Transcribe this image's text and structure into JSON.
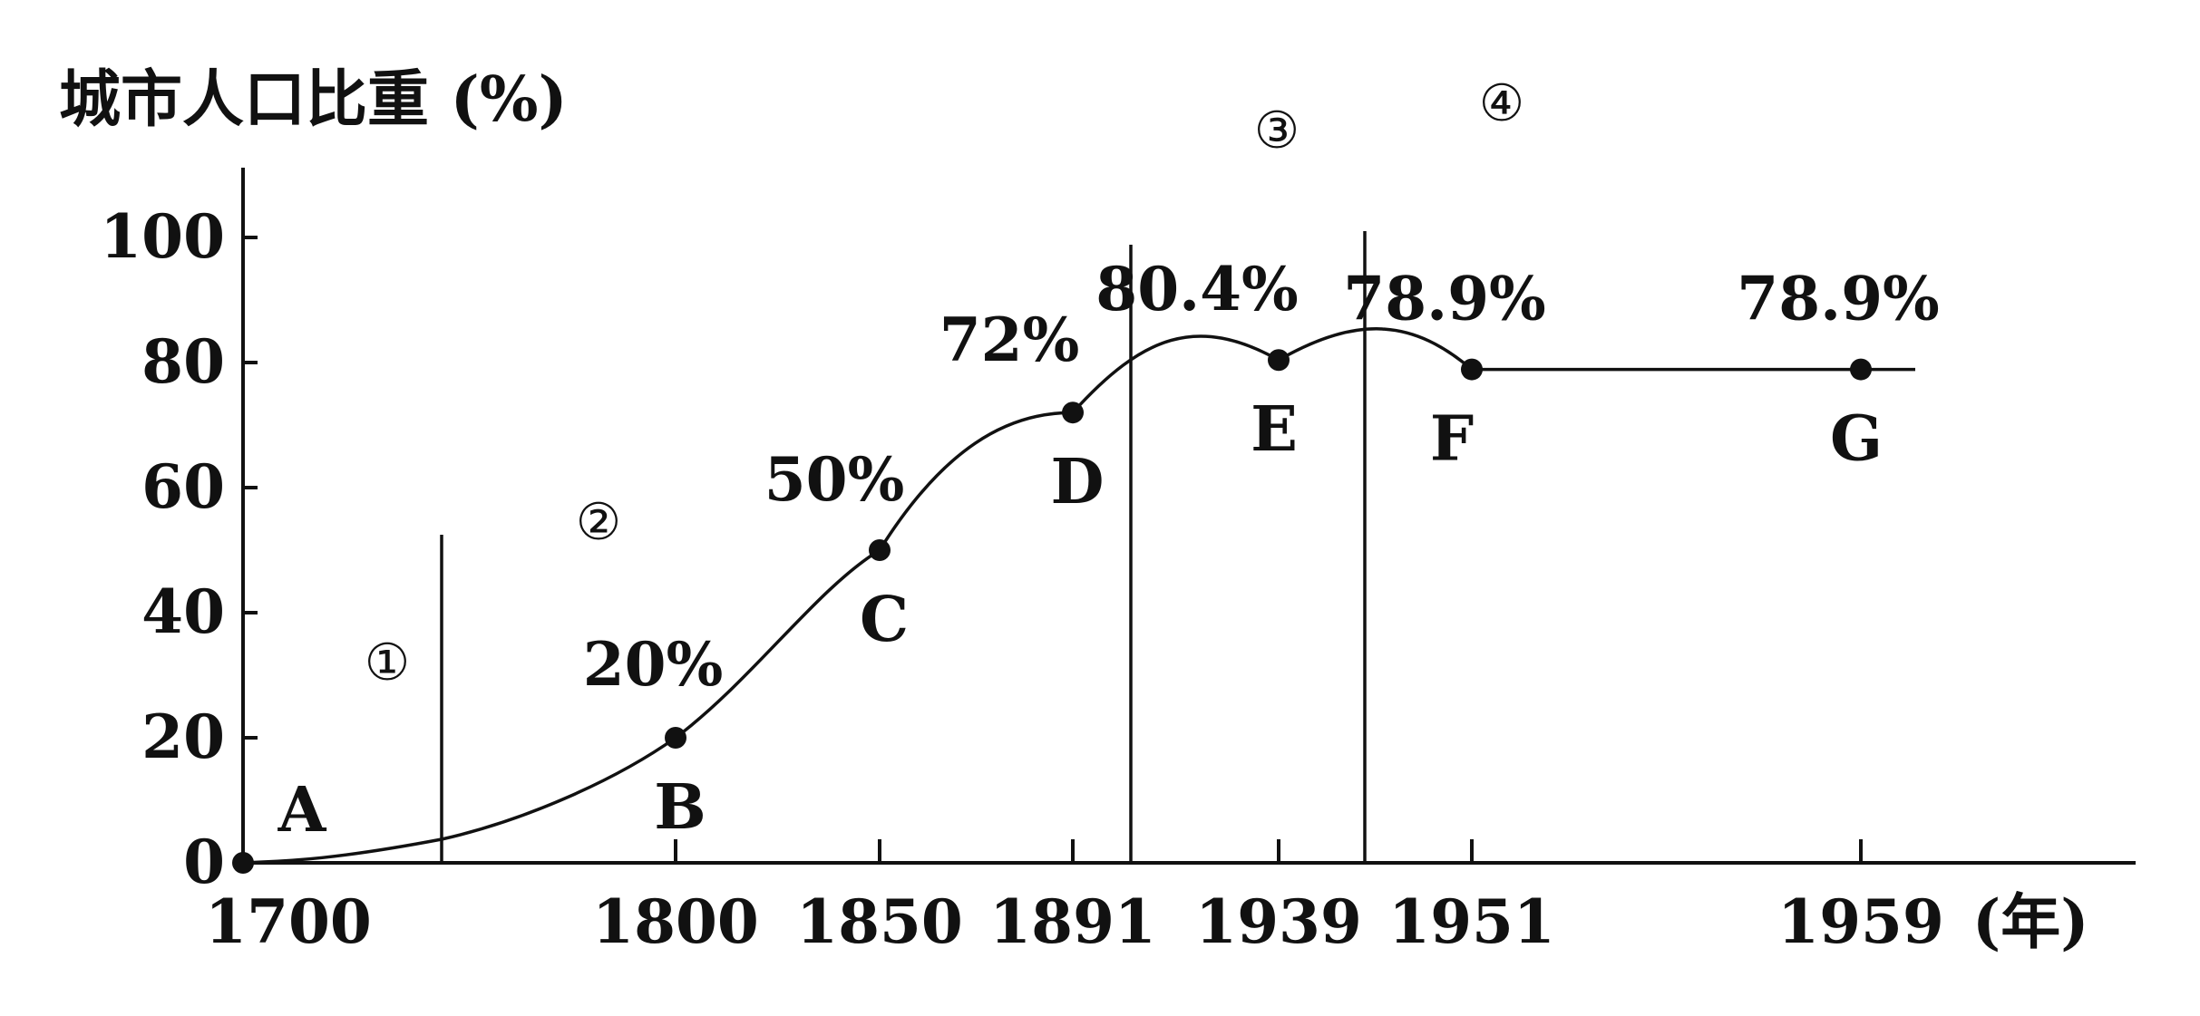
{
  "chart_data": {
    "type": "line",
    "title": "",
    "ylabel": "城市人口比重 (%)",
    "xlabel": "",
    "x_unit_label": "(年)",
    "ylim": [
      0,
      100
    ],
    "y_ticks": [
      0,
      20,
      40,
      60,
      80,
      100
    ],
    "x_ticks": [
      "1700",
      "1800",
      "1850",
      "1891",
      "1939",
      "1951",
      "1959"
    ],
    "x_unit": "年",
    "grid": false,
    "points": [
      {
        "id": "A",
        "x": "1700",
        "y": 0,
        "label": "",
        "marker_label": "A"
      },
      {
        "id": "B",
        "x": "1800",
        "y": 20,
        "label": "20%",
        "marker_label": "B"
      },
      {
        "id": "C",
        "x": "1850",
        "y": 50,
        "label": "50%",
        "marker_label": "C"
      },
      {
        "id": "D",
        "x": "1891",
        "y": 72,
        "label": "72%",
        "marker_label": "D"
      },
      {
        "id": "E",
        "x": "1939",
        "y": 80.4,
        "label": "80.4%",
        "marker_label": "E"
      },
      {
        "id": "F",
        "x": "1951",
        "y": 78.9,
        "label": "78.9%",
        "marker_label": "F"
      },
      {
        "id": "G",
        "x": "1959",
        "y": 78.9,
        "label": "78.9%",
        "marker_label": "G"
      }
    ],
    "stages": [
      "①",
      "②",
      "③",
      "④"
    ]
  }
}
